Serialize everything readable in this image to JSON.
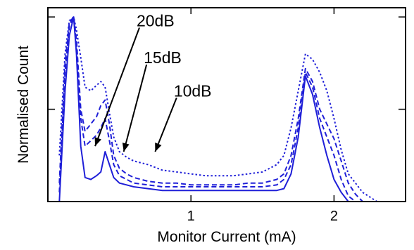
{
  "chart_data": {
    "type": "line",
    "xlabel": "Monitor Current (mA)",
    "ylabel": "Normalised Count",
    "xlim": [
      0,
      2.5
    ],
    "ylim": [
      0,
      1.05
    ],
    "x_ticks": [
      1,
      2
    ],
    "x_tick_labels": [
      "1",
      "2"
    ],
    "y_ticks": [
      0.5,
      1.0
    ],
    "y_tick_labels": [],
    "grid": false,
    "legend": "none",
    "series": [
      {
        "style": "solid",
        "color": "#1f1fd8",
        "x": [
          0.08,
          0.12,
          0.15,
          0.18,
          0.2,
          0.23,
          0.26,
          0.3,
          0.34,
          0.37,
          0.4,
          0.43,
          0.46,
          0.5,
          0.55,
          0.6,
          0.7,
          0.8,
          0.9,
          1.0,
          1.1,
          1.2,
          1.3,
          1.4,
          1.5,
          1.6,
          1.65,
          1.7,
          1.75,
          1.8,
          1.85,
          1.9,
          1.95,
          2.0,
          2.05,
          2.1,
          2.15
        ],
        "y": [
          0.0,
          0.6,
          0.9,
          1.0,
          0.8,
          0.3,
          0.13,
          0.12,
          0.14,
          0.16,
          0.27,
          0.2,
          0.13,
          0.1,
          0.09,
          0.08,
          0.07,
          0.06,
          0.06,
          0.06,
          0.06,
          0.06,
          0.06,
          0.06,
          0.06,
          0.06,
          0.07,
          0.15,
          0.35,
          0.68,
          0.58,
          0.4,
          0.25,
          0.12,
          0.05,
          0.0,
          0.0
        ]
      },
      {
        "style": "dashed",
        "color": "#1f1fd8",
        "x": [
          0.08,
          0.12,
          0.15,
          0.18,
          0.2,
          0.23,
          0.26,
          0.3,
          0.34,
          0.37,
          0.4,
          0.43,
          0.46,
          0.5,
          0.55,
          0.6,
          0.7,
          0.8,
          0.9,
          1.0,
          1.1,
          1.2,
          1.3,
          1.4,
          1.5,
          1.6,
          1.65,
          1.7,
          1.75,
          1.8,
          1.85,
          1.9,
          1.95,
          2.0,
          2.05,
          2.1,
          2.15,
          2.2
        ],
        "y": [
          0.05,
          0.7,
          0.95,
          1.0,
          0.85,
          0.45,
          0.3,
          0.33,
          0.36,
          0.4,
          0.45,
          0.33,
          0.2,
          0.14,
          0.12,
          0.1,
          0.09,
          0.08,
          0.08,
          0.08,
          0.08,
          0.08,
          0.08,
          0.08,
          0.08,
          0.09,
          0.12,
          0.2,
          0.4,
          0.7,
          0.62,
          0.45,
          0.35,
          0.25,
          0.12,
          0.03,
          0.0,
          0.0
        ]
      },
      {
        "style": "dashed",
        "color": "#1f1fd8",
        "x": [
          0.08,
          0.12,
          0.15,
          0.18,
          0.2,
          0.23,
          0.26,
          0.3,
          0.34,
          0.37,
          0.4,
          0.43,
          0.46,
          0.5,
          0.55,
          0.6,
          0.7,
          0.8,
          0.9,
          1.0,
          1.1,
          1.2,
          1.3,
          1.4,
          1.5,
          1.6,
          1.65,
          1.7,
          1.75,
          1.8,
          1.85,
          1.9,
          1.95,
          2.0,
          2.05,
          2.1,
          2.15,
          2.2,
          2.3
        ],
        "y": [
          0.1,
          0.75,
          0.97,
          1.0,
          0.88,
          0.5,
          0.38,
          0.42,
          0.46,
          0.52,
          0.55,
          0.42,
          0.25,
          0.18,
          0.15,
          0.13,
          0.11,
          0.1,
          0.1,
          0.09,
          0.09,
          0.09,
          0.09,
          0.1,
          0.1,
          0.12,
          0.15,
          0.25,
          0.45,
          0.72,
          0.65,
          0.5,
          0.42,
          0.34,
          0.22,
          0.1,
          0.04,
          0.0,
          0.0
        ]
      },
      {
        "style": "dotted",
        "color": "#1f1fd8",
        "x": [
          0.08,
          0.12,
          0.15,
          0.18,
          0.2,
          0.23,
          0.26,
          0.3,
          0.34,
          0.37,
          0.4,
          0.43,
          0.46,
          0.5,
          0.55,
          0.6,
          0.7,
          0.8,
          0.9,
          1.0,
          1.1,
          1.2,
          1.3,
          1.4,
          1.5,
          1.6,
          1.65,
          1.7,
          1.75,
          1.8,
          1.85,
          1.9,
          1.95,
          2.0,
          2.05,
          2.1,
          2.15,
          2.2,
          2.3,
          2.4
        ],
        "y": [
          0.25,
          0.8,
          0.98,
          1.0,
          0.93,
          0.78,
          0.62,
          0.6,
          0.63,
          0.65,
          0.62,
          0.48,
          0.35,
          0.27,
          0.24,
          0.22,
          0.2,
          0.17,
          0.16,
          0.15,
          0.14,
          0.14,
          0.14,
          0.15,
          0.16,
          0.2,
          0.25,
          0.4,
          0.6,
          0.8,
          0.77,
          0.7,
          0.6,
          0.45,
          0.28,
          0.15,
          0.1,
          0.05,
          0.0,
          0.0
        ]
      }
    ],
    "annotations": [
      {
        "text": "20dB",
        "tx": 0.62,
        "ty": 0.98,
        "ax": 0.33,
        "ay": 0.3
      },
      {
        "text": "15dB",
        "tx": 0.67,
        "ty": 0.78,
        "ax": 0.53,
        "ay": 0.27
      },
      {
        "text": "10dB",
        "tx": 0.88,
        "ty": 0.6,
        "ax": 0.75,
        "ay": 0.27
      }
    ]
  }
}
